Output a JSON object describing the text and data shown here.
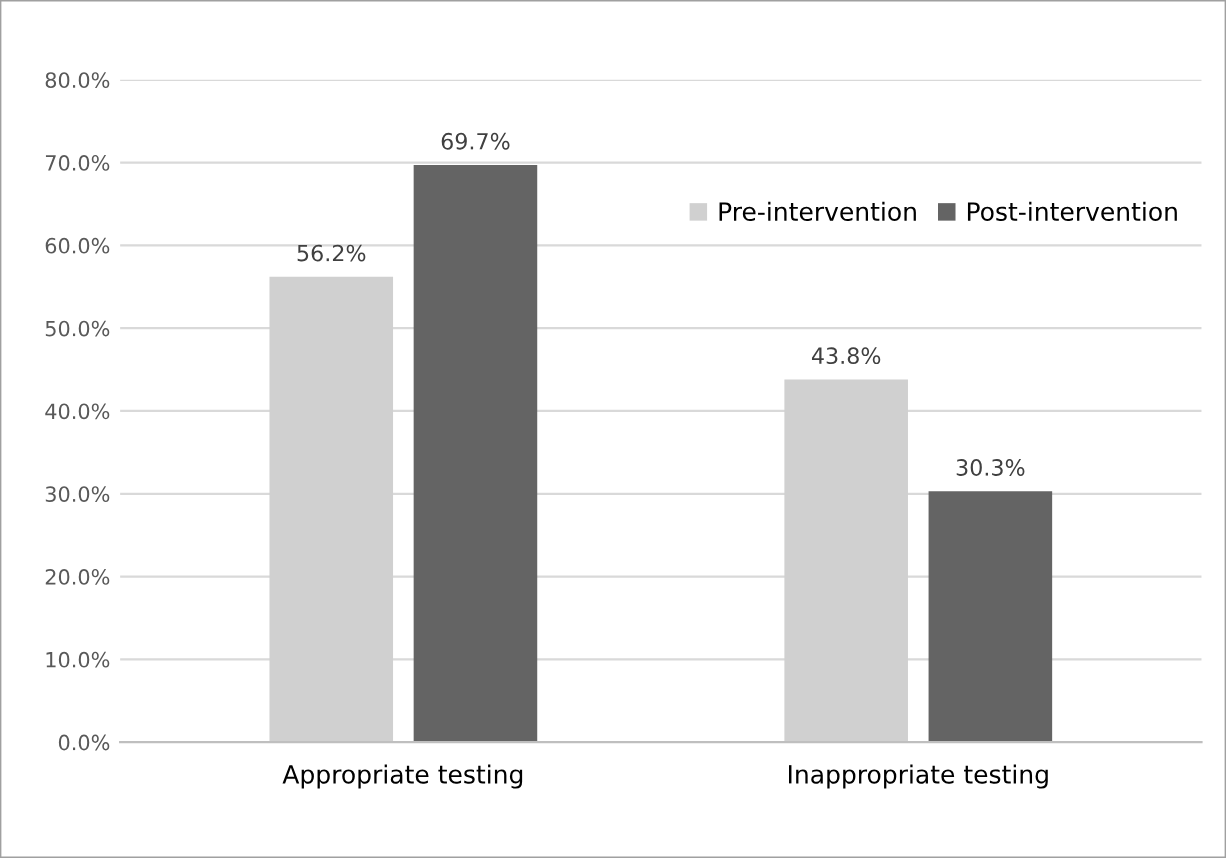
{
  "chart_data": {
    "type": "bar",
    "categories": [
      "Appropriate testing",
      "Inappropriate testing"
    ],
    "series": [
      {
        "name": "Pre-intervention",
        "color": "#d0d0d0",
        "values": [
          56.2,
          43.8
        ],
        "value_labels": [
          "56.2%",
          "43.8%"
        ]
      },
      {
        "name": "Post-intervention",
        "color": "#646464",
        "values": [
          69.7,
          30.3
        ],
        "value_labels": [
          "69.7%",
          "30.3%"
        ]
      }
    ],
    "ylim": [
      0,
      80
    ],
    "yticks": [
      {
        "value": 0,
        "label": "0.0%"
      },
      {
        "value": 10,
        "label": "10.0%"
      },
      {
        "value": 20,
        "label": "20.0%"
      },
      {
        "value": 30,
        "label": "30.0%"
      },
      {
        "value": 40,
        "label": "40.0%"
      },
      {
        "value": 50,
        "label": "50.0%"
      },
      {
        "value": 60,
        "label": "60.0%"
      },
      {
        "value": 70,
        "label": "70.0%"
      },
      {
        "value": 80,
        "label": "80.0%"
      }
    ],
    "grid": "y",
    "legend": "top right"
  }
}
